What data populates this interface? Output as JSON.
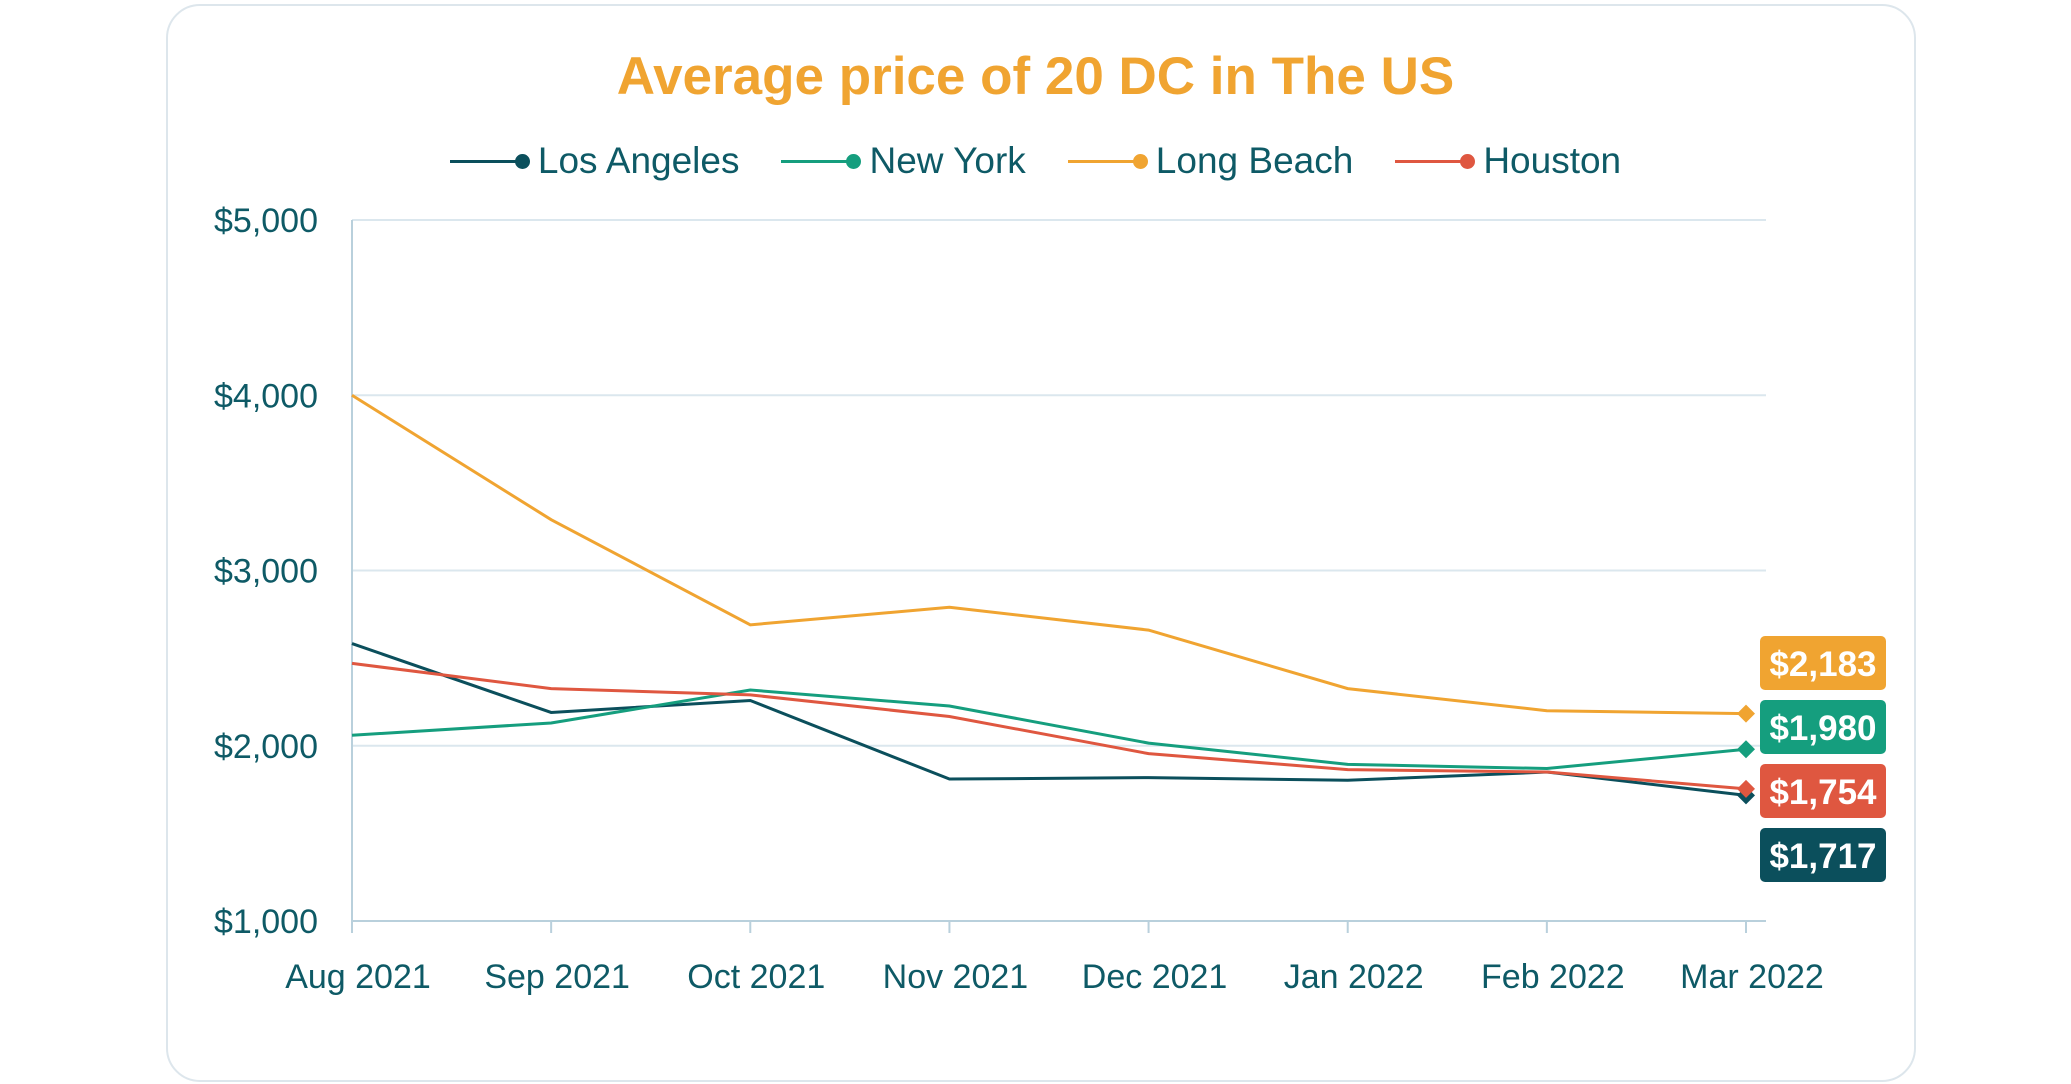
{
  "chart_data": {
    "type": "line",
    "title": "Average price of 20 DC in The US",
    "categories": [
      "Aug 2021",
      "Sep 2021",
      "Oct 2021",
      "Nov 2021",
      "Dec 2021",
      "Jan 2022",
      "Feb 2022",
      "Mar 2022"
    ],
    "ylim": [
      1000,
      5000
    ],
    "yticks": [
      1000,
      2000,
      3000,
      4000,
      5000
    ],
    "ytick_labels": [
      "$1,000",
      "$2,000",
      "$3,000",
      "$4,000",
      "$5,000"
    ],
    "grid": true,
    "legend": "top",
    "series": [
      {
        "name": "Los Angeles",
        "color": "#0b4f5c",
        "values": [
          2583,
          2190,
          2258,
          1810,
          1818,
          1803,
          1850,
          1717
        ],
        "end_label": "$1,717"
      },
      {
        "name": "New York",
        "color": "#159e7e",
        "values": [
          2060,
          2130,
          2318,
          2227,
          2015,
          1894,
          1870,
          1980
        ],
        "end_label": "$1,980"
      },
      {
        "name": "Long Beach",
        "color": "#f0a431",
        "values": [
          4000,
          3290,
          2690,
          2790,
          2660,
          2326,
          2200,
          2183
        ],
        "end_label": "$2,183"
      },
      {
        "name": "Houston",
        "color": "#df5740",
        "values": [
          2470,
          2326,
          2290,
          2167,
          1955,
          1864,
          1850,
          1754
        ],
        "end_label": "$1,754"
      }
    ]
  }
}
